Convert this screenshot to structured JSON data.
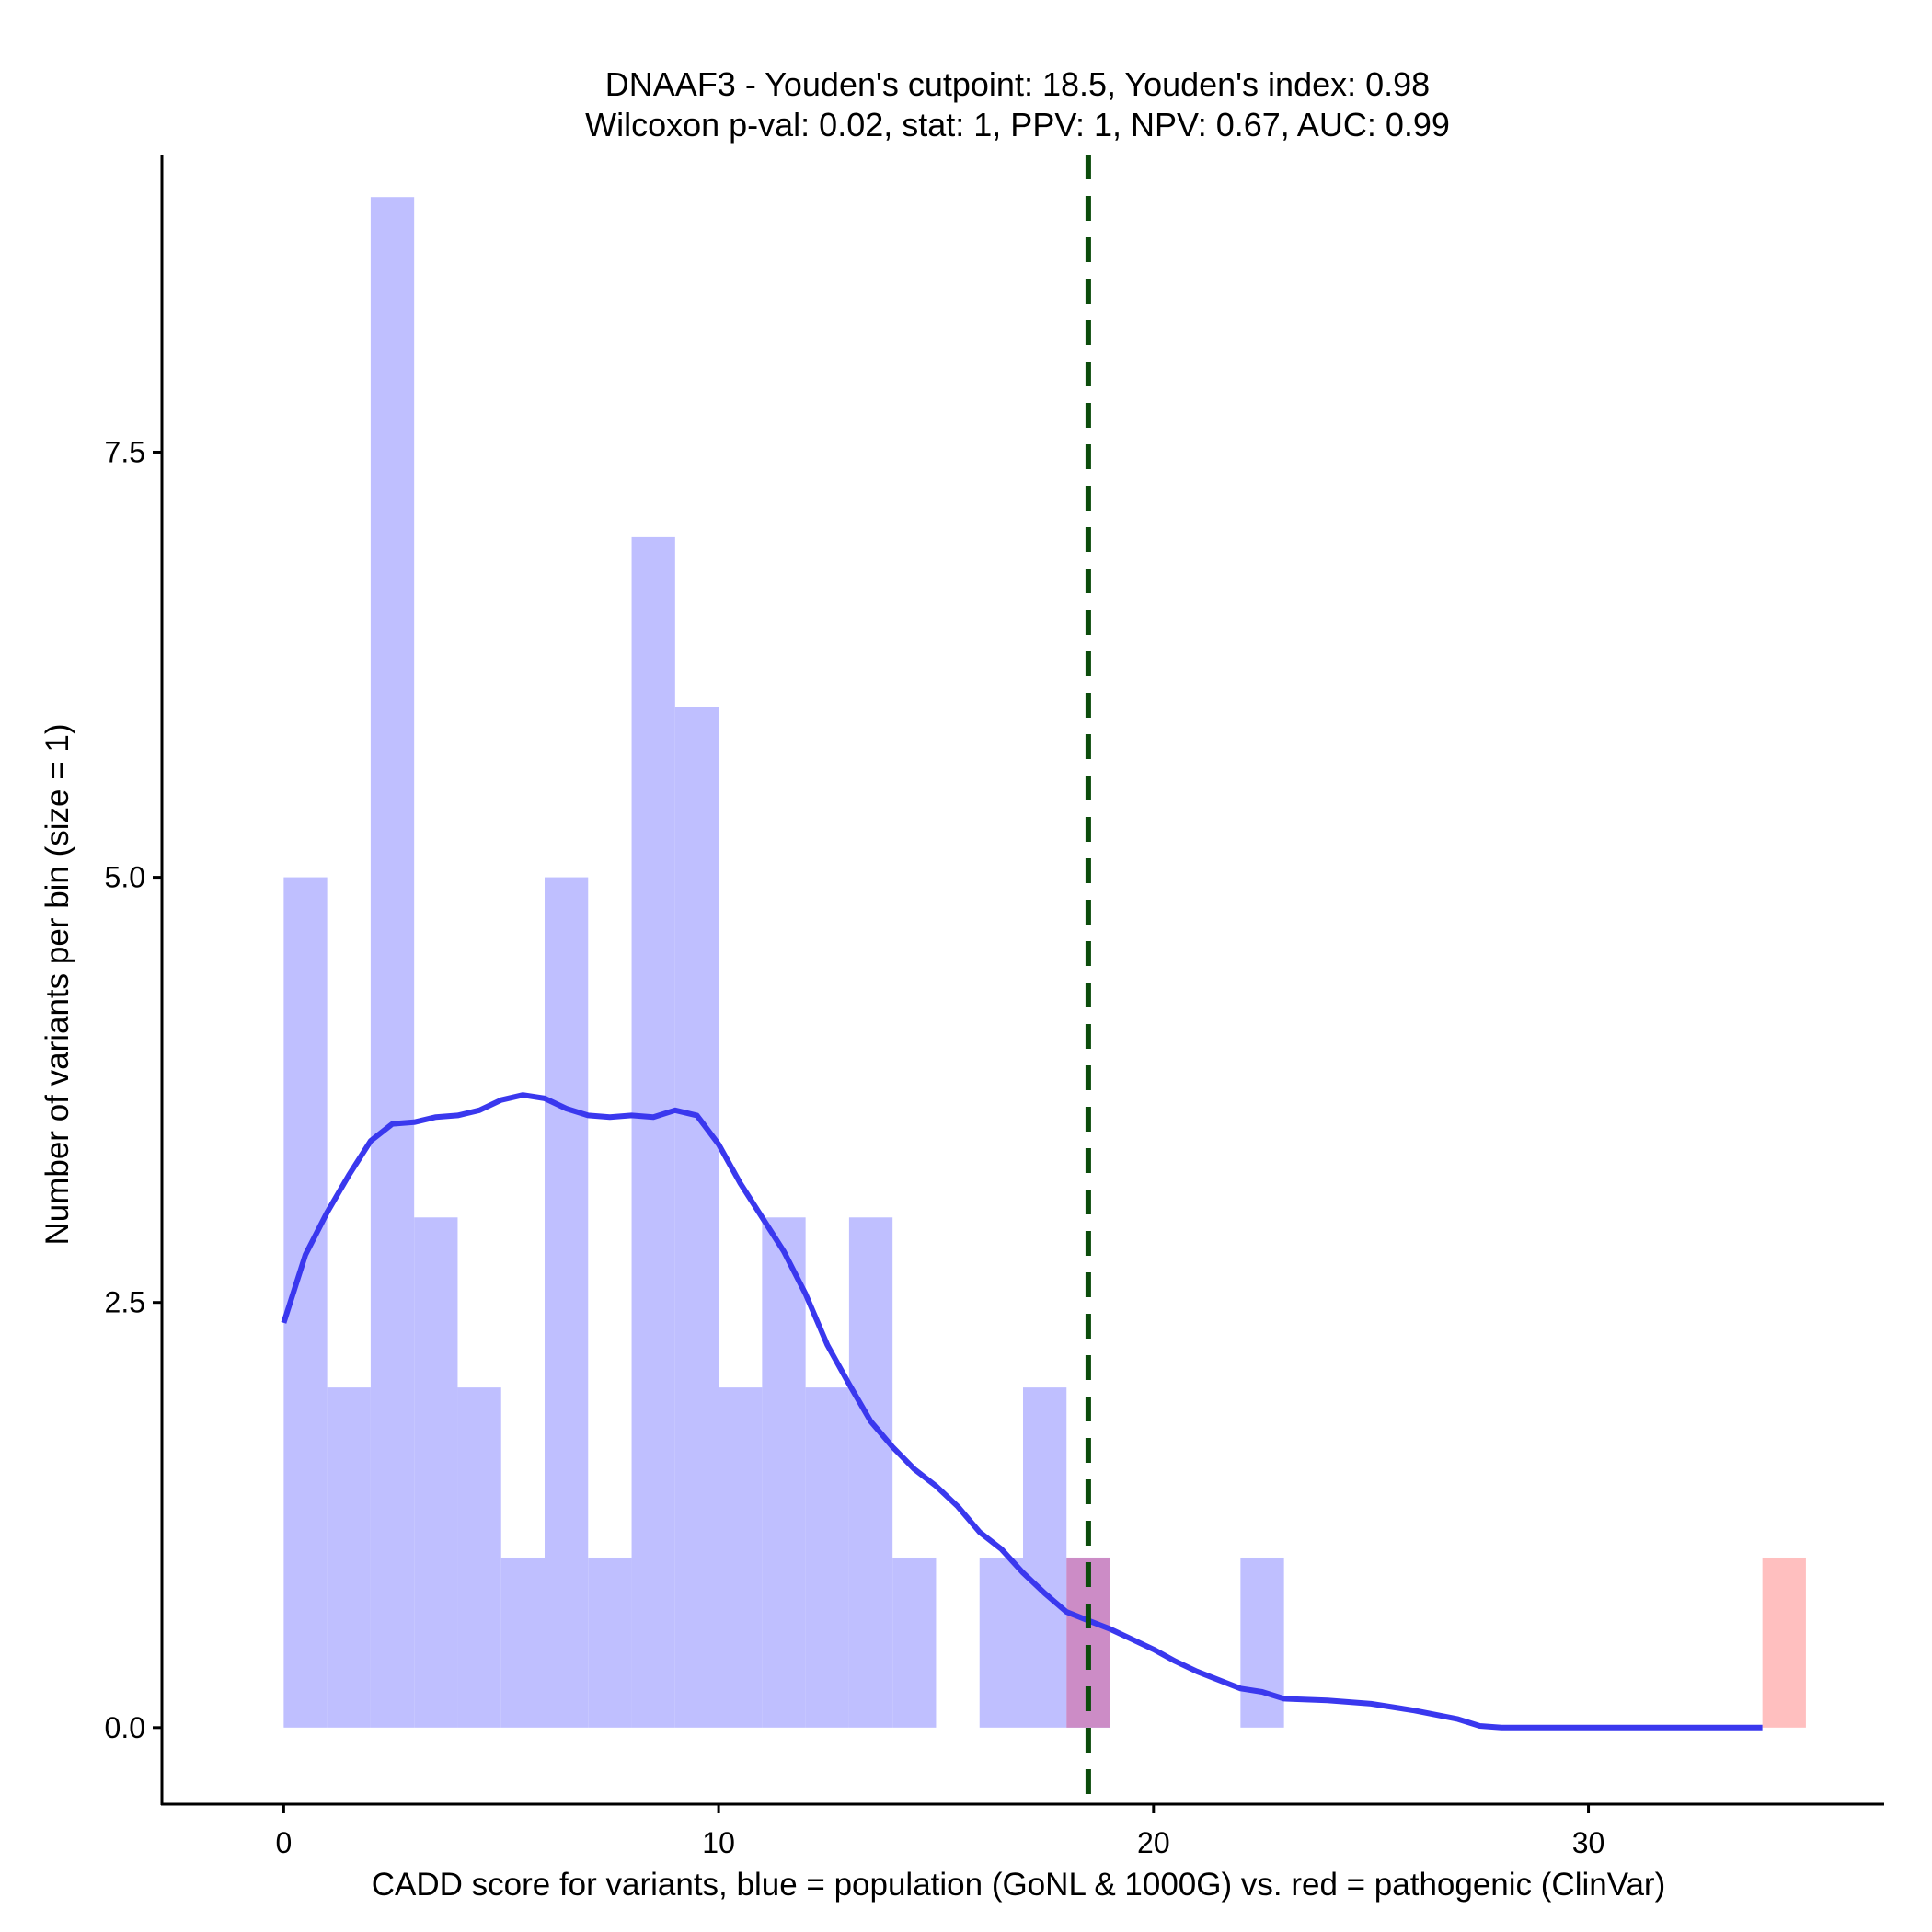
{
  "chart_data": {
    "type": "bar",
    "title": [
      "DNAAF3 - Youden's cutpoint: 18.5, Youden's index: 0.98",
      "Wilcoxon p-val: 0.02, stat: 1, PPV: 1, NPV: 0.67, AUC: 0.99"
    ],
    "xlabel": "CADD score for variants, blue = population (GoNL & 1000G) vs. red = pathogenic (ClinVar)",
    "ylabel": "Number of variants per bin (size = 1)",
    "xlim": [
      -2.8,
      36.8
    ],
    "ylim": [
      -0.45,
      9.25
    ],
    "x_ticks": [
      0,
      10,
      20,
      30
    ],
    "x_tick_labels": [
      "0",
      "10",
      "20",
      "30"
    ],
    "y_ticks": [
      0,
      2.5,
      5,
      7.5
    ],
    "y_tick_labels": [
      "0.0",
      "2.5",
      "5.0",
      "7.5"
    ],
    "bin_width": 1,
    "cutpoint": 18.5,
    "colors": {
      "population_bar": "#bfbfff",
      "pathogenic_bar": "#ffbfbf",
      "overlap_bar": "#cc8cc6",
      "density": "#3a38ee",
      "cutpoint_line": "#0b4b0b",
      "axis": "#000000"
    },
    "series": [
      {
        "name": "population",
        "bins": [
          {
            "start": 0,
            "count": 5
          },
          {
            "start": 1,
            "count": 2
          },
          {
            "start": 2,
            "count": 9
          },
          {
            "start": 3,
            "count": 3
          },
          {
            "start": 4,
            "count": 2
          },
          {
            "start": 5,
            "count": 1
          },
          {
            "start": 6,
            "count": 5
          },
          {
            "start": 7,
            "count": 1
          },
          {
            "start": 8,
            "count": 7
          },
          {
            "start": 9,
            "count": 6
          },
          {
            "start": 10,
            "count": 2
          },
          {
            "start": 11,
            "count": 3
          },
          {
            "start": 12,
            "count": 2
          },
          {
            "start": 13,
            "count": 3
          },
          {
            "start": 14,
            "count": 1
          },
          {
            "start": 16,
            "count": 1
          },
          {
            "start": 17,
            "count": 2
          },
          {
            "start": 18,
            "count": 1
          },
          {
            "start": 22,
            "count": 1
          }
        ]
      },
      {
        "name": "pathogenic",
        "bins": [
          {
            "start": 18,
            "count": 1
          },
          {
            "start": 34,
            "count": 1
          }
        ]
      }
    ],
    "density_curve": {
      "name": "population density",
      "x": [
        0,
        0.5,
        1,
        1.5,
        2,
        2.5,
        3,
        3.5,
        4,
        4.5,
        5,
        5.5,
        6,
        6.5,
        7,
        7.5,
        8,
        8.5,
        9,
        9.5,
        10,
        10.5,
        11,
        11.5,
        12,
        12.5,
        13,
        13.5,
        14,
        14.5,
        15,
        15.5,
        16,
        16.5,
        17,
        17.5,
        18,
        18.5,
        19,
        19.5,
        20,
        20.5,
        21,
        21.5,
        22,
        22.5,
        23,
        24,
        25,
        26,
        27,
        27.5,
        28,
        29,
        30,
        31,
        32,
        33,
        34
      ],
      "y": [
        2.38,
        2.78,
        3.03,
        3.25,
        3.45,
        3.55,
        3.56,
        3.59,
        3.6,
        3.63,
        3.69,
        3.72,
        3.7,
        3.64,
        3.6,
        3.59,
        3.6,
        3.59,
        3.63,
        3.6,
        3.43,
        3.2,
        3.0,
        2.8,
        2.55,
        2.25,
        2.02,
        1.8,
        1.65,
        1.52,
        1.42,
        1.3,
        1.15,
        1.05,
        0.91,
        0.79,
        0.68,
        0.63,
        0.58,
        0.52,
        0.46,
        0.39,
        0.33,
        0.28,
        0.23,
        0.21,
        0.17,
        0.16,
        0.14,
        0.1,
        0.05,
        0.01,
        0,
        0,
        0,
        0,
        0,
        0,
        0
      ]
    }
  }
}
